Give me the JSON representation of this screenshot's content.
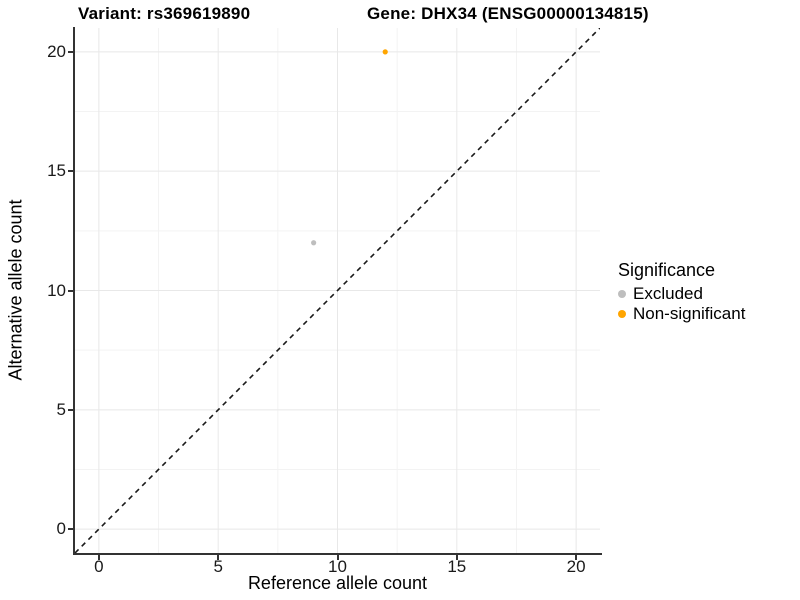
{
  "titles": {
    "variant": "Variant: rs369619890",
    "gene": "Gene: DHX34 (ENSG00000134815)"
  },
  "legend": {
    "title": "Significance"
  },
  "chart_data": {
    "type": "scatter",
    "title": "Variant: rs369619890   Gene: DHX34 (ENSG00000134815)",
    "xlabel": "Reference allele count",
    "ylabel": "Alternative allele count",
    "xlim": [
      -1,
      21
    ],
    "ylim": [
      -1,
      21
    ],
    "x_ticks": [
      0,
      5,
      10,
      15,
      20
    ],
    "y_ticks": [
      0,
      5,
      10,
      15,
      20
    ],
    "x_minor_ticks": [
      2.5,
      7.5,
      12.5,
      17.5
    ],
    "y_minor_ticks": [
      2.5,
      7.5,
      12.5,
      17.5
    ],
    "grid": true,
    "legend_position": "right",
    "legend_title": "Significance",
    "reference_line": {
      "kind": "identity y=x",
      "style": "dashed",
      "x1": -1,
      "y1": -1,
      "x2": 21,
      "y2": 21,
      "color": "#1a1a1a"
    },
    "series": [
      {
        "name": "Excluded",
        "color": "#bebebe",
        "points": [
          {
            "x": 9,
            "y": 12
          }
        ]
      },
      {
        "name": "Non-significant",
        "color": "#ffa500",
        "points": [
          {
            "x": 12,
            "y": 20
          }
        ]
      }
    ],
    "style": {
      "major_grid_color": "#e8e8e8",
      "minor_grid_color": "#f3f3f3",
      "axis_line_color": "#333333",
      "point_radius": 2.6,
      "background": "#ffffff"
    }
  }
}
